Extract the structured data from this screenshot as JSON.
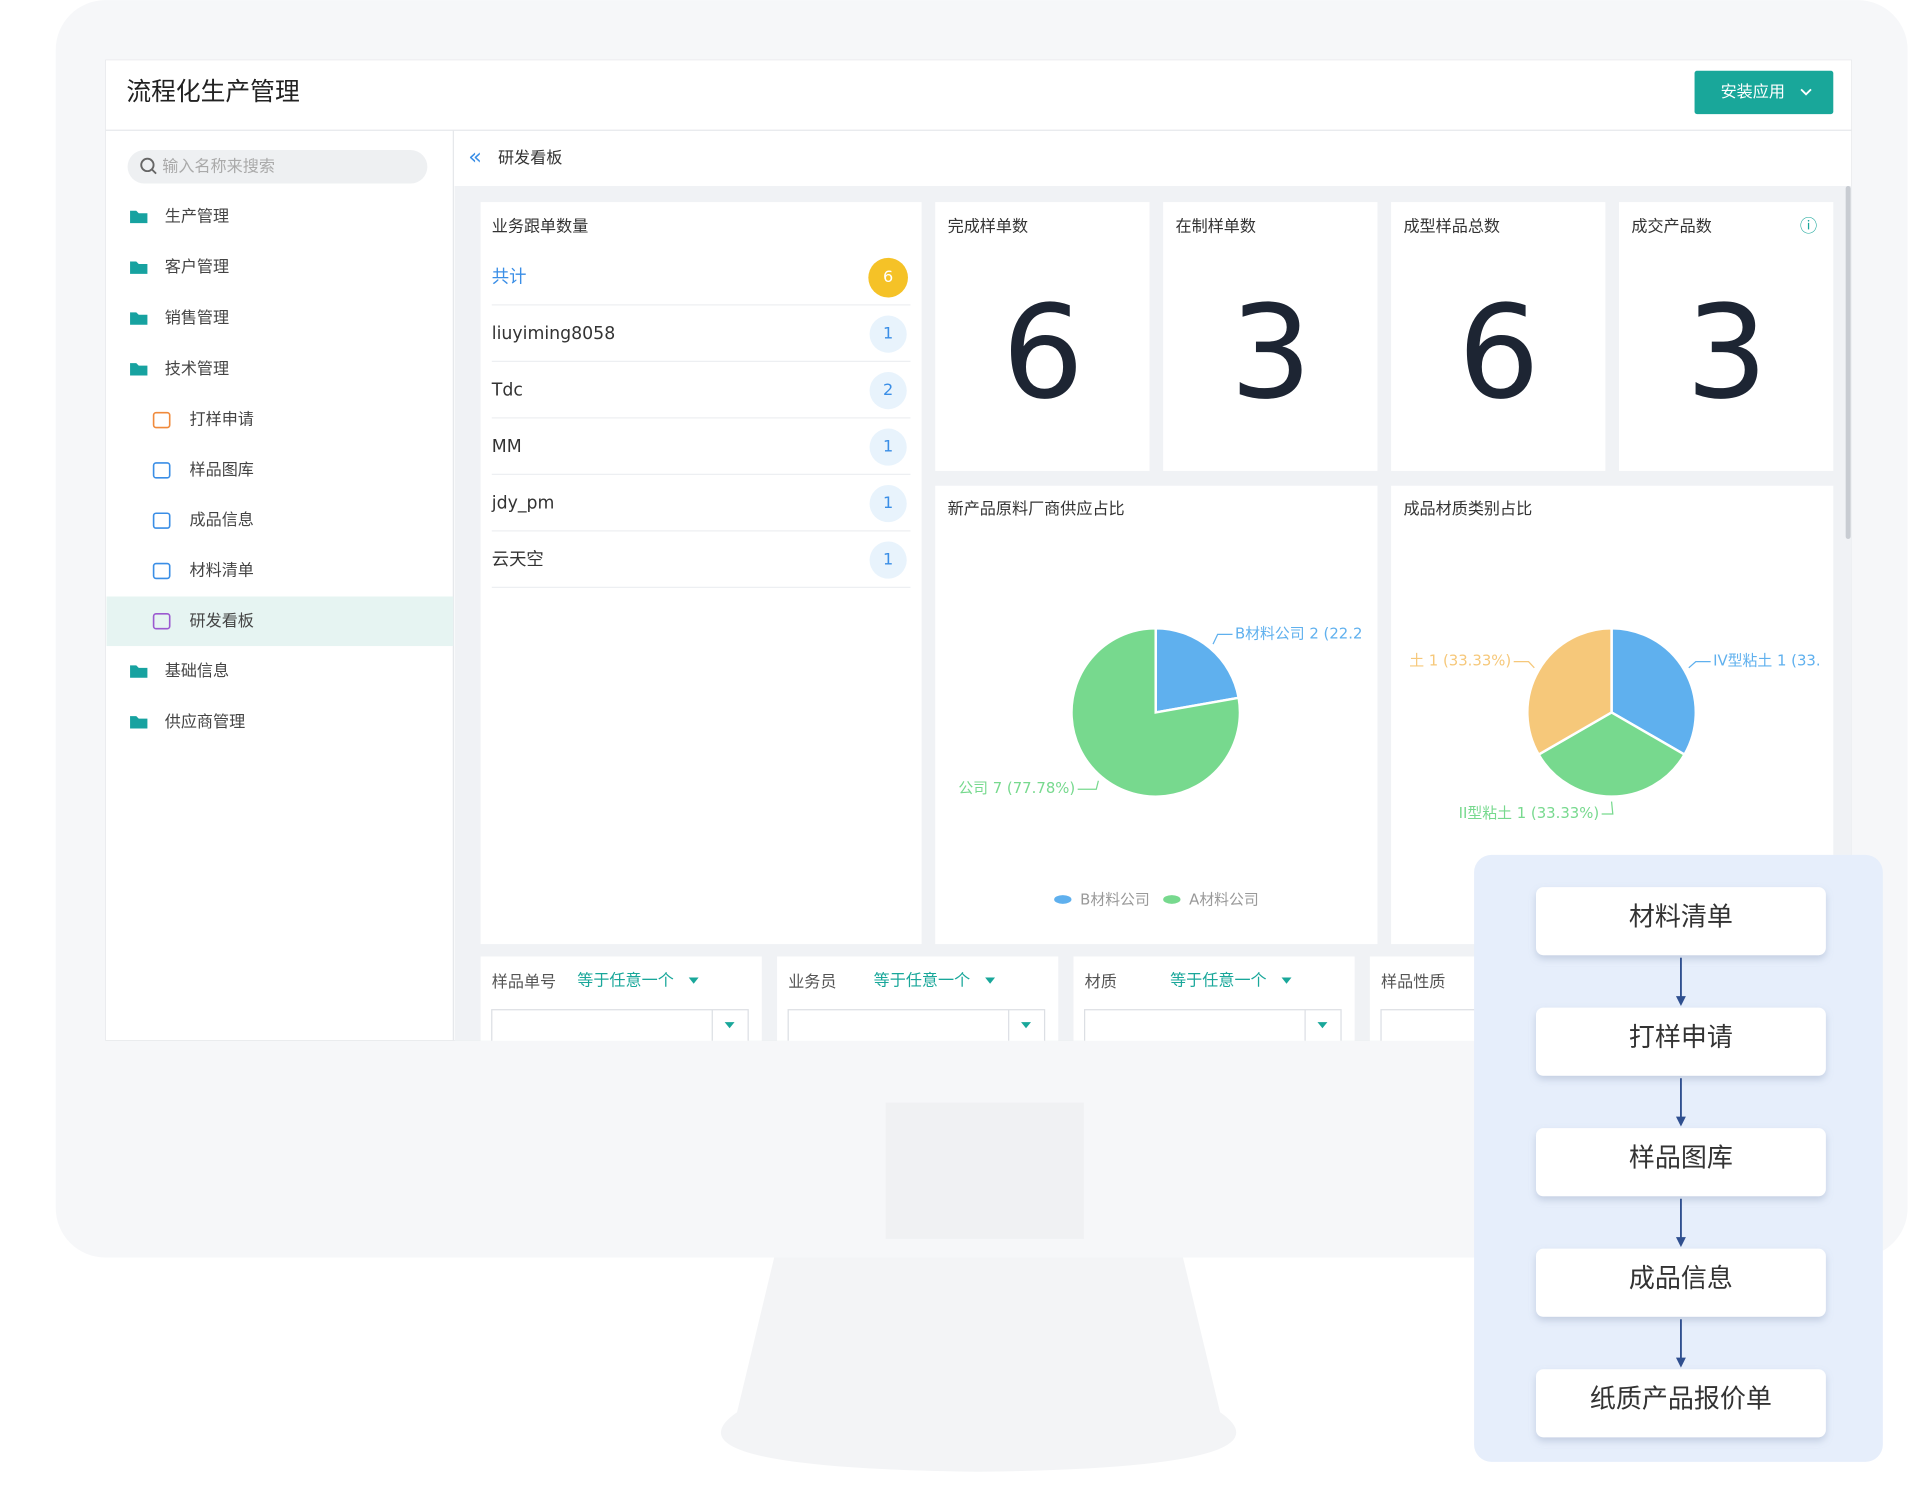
{
  "header": {
    "title": "流程化生产管理",
    "button": "安装应用"
  },
  "sidebar": {
    "search_placeholder": "输入名称来搜索",
    "menu": [
      {
        "label": "生产管理"
      },
      {
        "label": "客户管理"
      },
      {
        "label": "销售管理"
      },
      {
        "label": "技术管理",
        "children": [
          "打样申请",
          "样品图库",
          "成品信息",
          "材料清单",
          "研发看板"
        ]
      },
      {
        "label": "基础信息"
      },
      {
        "label": "供应商管理"
      }
    ]
  },
  "breadcrumb": "研发看板",
  "follow_up": {
    "title": "业务跟单数量",
    "rows": [
      {
        "name": "共计",
        "count": 6
      },
      {
        "name": "liuyiming8058",
        "count": 1
      },
      {
        "name": "Tdc",
        "count": 2
      },
      {
        "name": "MM",
        "count": 1
      },
      {
        "name": "jdy_pm",
        "count": 1
      },
      {
        "name": "云天空",
        "count": 1
      }
    ]
  },
  "stats": [
    {
      "title": "完成样单数",
      "value": 6
    },
    {
      "title": "在制样单数",
      "value": 3
    },
    {
      "title": "成型样品总数",
      "value": 6
    },
    {
      "title": "成交产品数",
      "value": 3
    }
  ],
  "pies": [
    {
      "title": "新产品原料厂商供应占比",
      "legend": [
        "B材料公司",
        "A材料公司"
      ],
      "slices": [
        {
          "value": 2,
          "label": "B材料公司 2 (22.2",
          "color": "#5fb0ee"
        },
        {
          "value": 7,
          "label": "公司 7 (77.78%)",
          "color": "#77d98e"
        }
      ]
    },
    {
      "title": "成品材质类别占比",
      "slices": [
        {
          "value": 1,
          "label": "IV型粘土 1 (33.",
          "color": "#5fb0ee"
        },
        {
          "value": 1,
          "label": "II型粘土 1 (33.33%)",
          "color": "#77d98e"
        },
        {
          "value": 1,
          "label": "土 1 (33.33%)",
          "color": "#f6c87a"
        }
      ]
    }
  ],
  "filters": [
    {
      "label": "样品单号",
      "operator": "等于任意一个"
    },
    {
      "label": "业务员",
      "operator": "等于任意一个"
    },
    {
      "label": "材质",
      "operator": "等于任意一个"
    },
    {
      "label": "样品性质"
    }
  ],
  "flow": [
    "材料清单",
    "打样申请",
    "样品图库",
    "成品信息",
    "纸质产品报价单"
  ]
}
